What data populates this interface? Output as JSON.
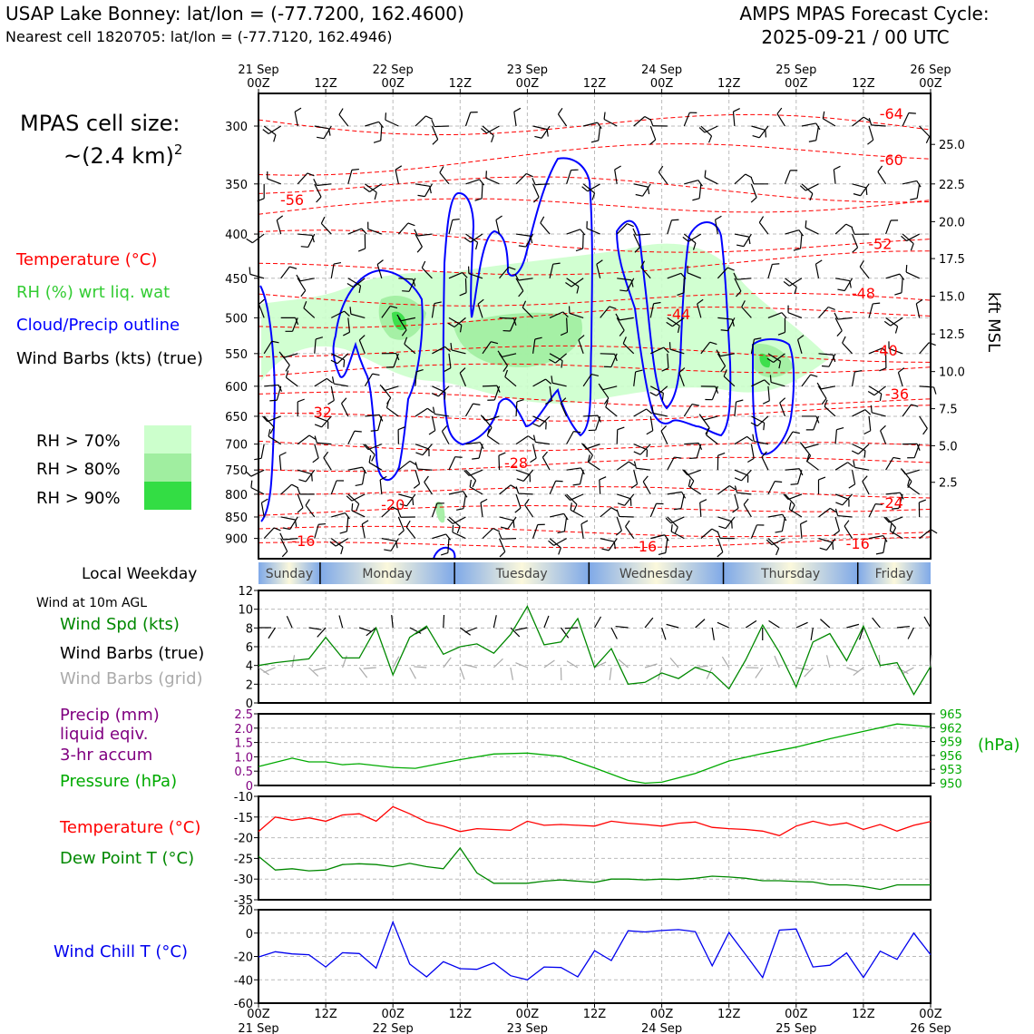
{
  "header": {
    "title_left": "USAP Lake Bonney: lat/lon = (-77.7200, 162.4600)",
    "subtitle_left": "Nearest cell 1820705: lat/lon = (-77.7120, 162.4946)",
    "title_right_1": "AMPS MPAS Forecast Cycle:",
    "title_right_2": "2025-09-21 / 00 UTC"
  },
  "cell_size": {
    "line1": "MPAS cell size:",
    "line2": "~(2.4 km)",
    "exp": "2"
  },
  "legend": {
    "temperature": {
      "label": "Temperature (°C)",
      "color": "#ff0000"
    },
    "rh": {
      "label": "RH (%) wrt liq. wat",
      "color": "#33cc33"
    },
    "cloud": {
      "label": "Cloud/Precip outline",
      "color": "#0000ff"
    },
    "barbs": {
      "label": "Wind Barbs (kts) (true)",
      "color": "#000000"
    },
    "rh70": {
      "label": "RH > 70%",
      "color": "#ccffcc"
    },
    "rh80": {
      "label": "RH > 80%",
      "color": "#a0eea0"
    },
    "rh90": {
      "label": "RH > 90%",
      "color": "#33dd44"
    }
  },
  "time_axis": {
    "ticks": [
      {
        "hour": 0,
        "top": "00Z",
        "bottom": "21 Sep"
      },
      {
        "hour": 12,
        "top": "12Z",
        "bottom": ""
      },
      {
        "hour": 24,
        "top": "00Z",
        "bottom": "22 Sep"
      },
      {
        "hour": 36,
        "top": "12Z",
        "bottom": ""
      },
      {
        "hour": 48,
        "top": "00Z",
        "bottom": "23 Sep"
      },
      {
        "hour": 60,
        "top": "12Z",
        "bottom": ""
      },
      {
        "hour": 72,
        "top": "00Z",
        "bottom": "24 Sep"
      },
      {
        "hour": 84,
        "top": "12Z",
        "bottom": ""
      },
      {
        "hour": 96,
        "top": "00Z",
        "bottom": "25 Sep"
      },
      {
        "hour": 108,
        "top": "12Z",
        "bottom": ""
      },
      {
        "hour": 120,
        "top": "00Z",
        "bottom": "26 Sep"
      }
    ],
    "top_dates": [
      "21 Sep",
      "22 Sep",
      "23 Sep",
      "24 Sep",
      "25 Sep",
      "26 Sep"
    ]
  },
  "weekday": {
    "label": "Local Weekday",
    "days": [
      {
        "name": "Sunday",
        "start": 0,
        "end": 11
      },
      {
        "name": "Monday",
        "start": 11,
        "end": 35
      },
      {
        "name": "Tuesday",
        "start": 35,
        "end": 59
      },
      {
        "name": "Wednesday",
        "start": 59,
        "end": 83
      },
      {
        "name": "Thursday",
        "start": 83,
        "end": 107
      },
      {
        "name": "Friday",
        "start": 107,
        "end": 120
      }
    ]
  },
  "chart_data": [
    {
      "type": "contour",
      "name": "cross-section",
      "ylabel_right": "kft MSL",
      "pressure_ticks": [
        300,
        350,
        400,
        450,
        500,
        550,
        600,
        650,
        700,
        750,
        800,
        850,
        900
      ],
      "ylim_hpa": [
        950,
        275
      ],
      "kft_ticks": [
        {
          "label": "25.0",
          "hpa": 315
        },
        {
          "label": "22.5",
          "hpa": 350
        },
        {
          "label": "20.0",
          "hpa": 387
        },
        {
          "label": "17.5",
          "hpa": 427
        },
        {
          "label": "15.0",
          "hpa": 472
        },
        {
          "label": "12.5",
          "hpa": 522
        },
        {
          "label": "10.0",
          "hpa": 577
        },
        {
          "label": "7.5",
          "hpa": 637
        },
        {
          "label": "5.0",
          "hpa": 703
        },
        {
          "label": "2.5",
          "hpa": 775
        }
      ],
      "temperature_labels": [
        {
          "text": "-64",
          "hour": 113,
          "hpa": 290
        },
        {
          "text": "-60",
          "hour": 113,
          "hpa": 328
        },
        {
          "text": "-56",
          "hour": 6,
          "hpa": 365
        },
        {
          "text": "-52",
          "hour": 111,
          "hpa": 410
        },
        {
          "text": "-48",
          "hour": 108,
          "hpa": 468
        },
        {
          "text": "-44",
          "hour": 75,
          "hpa": 495
        },
        {
          "text": "-40",
          "hour": 112,
          "hpa": 545
        },
        {
          "text": "-36",
          "hour": 114,
          "hpa": 612
        },
        {
          "text": "-32",
          "hour": 11,
          "hpa": 642
        },
        {
          "text": "-28",
          "hour": 46,
          "hpa": 735
        },
        {
          "text": "-24",
          "hour": 113,
          "hpa": 818
        },
        {
          "text": "-20",
          "hour": 24,
          "hpa": 822
        },
        {
          "text": "-16",
          "hour": 8,
          "hpa": 905
        },
        {
          "text": "-16",
          "hour": 69,
          "hpa": 918
        },
        {
          "text": "-16",
          "hour": 107,
          "hpa": 912
        }
      ]
    },
    {
      "type": "line",
      "name": "wind-10m",
      "panel_title": "Wind at 10m AGL",
      "labels": {
        "speed": "Wind Spd (kts)",
        "barbs_true": "Wind Barbs (true)",
        "barbs_grid": "Wind Barbs (grid)"
      },
      "colors": {
        "speed": "#008800",
        "barbs_true": "#000000",
        "barbs_grid": "#aaaaaa"
      },
      "ylim": [
        0,
        12
      ],
      "yticks": [
        0,
        2,
        4,
        6,
        8,
        10,
        12
      ],
      "x_hours": [
        0,
        3,
        6,
        9,
        12,
        15,
        18,
        21,
        24,
        27,
        30,
        33,
        36,
        39,
        42,
        45,
        48,
        51,
        54,
        57,
        60,
        63,
        66,
        69,
        72,
        75,
        78,
        81,
        84,
        87,
        90,
        93,
        96,
        99,
        102,
        105,
        108,
        111,
        114,
        117,
        120
      ],
      "speed": [
        4.0,
        4.3,
        4.5,
        4.7,
        7.0,
        4.8,
        4.8,
        8.0,
        3.0,
        7.0,
        8.2,
        5.2,
        6.0,
        6.3,
        5.3,
        7.3,
        10.3,
        6.2,
        6.5,
        9.0,
        3.8,
        5.8,
        2.0,
        2.2,
        3.2,
        2.6,
        3.8,
        3.2,
        1.5,
        4.6,
        8.3,
        5.4,
        1.7,
        6.5,
        7.4,
        4.5,
        8.2,
        4.0,
        4.3,
        0.9,
        3.9
      ]
    },
    {
      "type": "line",
      "name": "precip-pressure",
      "labels": {
        "precip": "Precip (mm)",
        "precip2": "liquid eqiv.",
        "precip3": "3-hr accum",
        "pressure": "Pressure (hPa)",
        "pressure_unit": "(hPa)"
      },
      "colors": {
        "precip": "#800080",
        "pressure": "#00aa00"
      },
      "precip_ylim": [
        0,
        2.5
      ],
      "precip_ticks": [
        "0",
        "0.5",
        "1.0",
        "1.5",
        "2.0",
        "2.5"
      ],
      "pressure_ylim": [
        949.5,
        965
      ],
      "pressure_ticks": [
        "950",
        "953",
        "956",
        "959",
        "962",
        "965"
      ],
      "x_hours": [
        0,
        6,
        9,
        12,
        15,
        18,
        24,
        28,
        36,
        42,
        48,
        54,
        60,
        66,
        69,
        72,
        78,
        84,
        90,
        96,
        102,
        108,
        114,
        117,
        120
      ],
      "pressure": [
        953.6,
        955.4,
        954.6,
        954.6,
        954.0,
        954.2,
        953.4,
        953.2,
        955.1,
        956.3,
        956.5,
        955.8,
        953.3,
        950.6,
        950.0,
        950.2,
        952.1,
        954.8,
        956.4,
        957.8,
        959.6,
        961.2,
        962.8,
        962.5,
        962.2
      ]
    },
    {
      "type": "line",
      "name": "temperature-dewpoint",
      "labels": {
        "temperature": "Temperature (°C)",
        "dewpoint": "Dew Point T (°C)"
      },
      "colors": {
        "temperature": "#ff0000",
        "dewpoint": "#008800"
      },
      "ylim": [
        -35,
        -10
      ],
      "yticks": [
        "-35",
        "-30",
        "-25",
        "-20",
        "-15",
        "-10"
      ],
      "x_hours": [
        0,
        3,
        6,
        9,
        12,
        15,
        18,
        21,
        24,
        27,
        30,
        33,
        36,
        39,
        42,
        45,
        48,
        51,
        54,
        57,
        60,
        63,
        66,
        69,
        72,
        75,
        78,
        81,
        84,
        87,
        90,
        93,
        96,
        99,
        102,
        105,
        108,
        111,
        114,
        117,
        120
      ],
      "temperature": [
        -18.5,
        -15.0,
        -15.8,
        -15.2,
        -16.0,
        -14.5,
        -14.2,
        -16.0,
        -12.5,
        -14.2,
        -16.2,
        -17.2,
        -18.5,
        -17.8,
        -18.0,
        -18.2,
        -16.0,
        -17.0,
        -16.8,
        -17.0,
        -17.2,
        -16.0,
        -16.5,
        -16.8,
        -17.2,
        -16.5,
        -16.2,
        -17.5,
        -17.8,
        -18.0,
        -18.4,
        -19.5,
        -17.2,
        -16.0,
        -17.0,
        -16.4,
        -18.0,
        -16.8,
        -18.4,
        -17.0,
        -16.1
      ],
      "dewpoint": [
        -24.5,
        -27.8,
        -27.5,
        -28.0,
        -27.8,
        -26.5,
        -26.3,
        -26.5,
        -27.0,
        -26.2,
        -27.0,
        -27.5,
        -22.5,
        -28.5,
        -31.0,
        -31.0,
        -31.0,
        -30.5,
        -30.2,
        -30.5,
        -30.8,
        -30.0,
        -30.0,
        -30.2,
        -30.0,
        -30.1,
        -29.8,
        -29.3,
        -29.5,
        -29.8,
        -30.4,
        -30.4,
        -30.6,
        -30.7,
        -31.4,
        -31.4,
        -31.8,
        -32.5,
        -31.4,
        -31.4,
        -31.4
      ]
    },
    {
      "type": "line",
      "name": "wind-chill",
      "labels": {
        "windchill": "Wind Chill T (°C)"
      },
      "colors": {
        "windchill": "#0000ee"
      },
      "ylim": [
        -60,
        20
      ],
      "yticks": [
        "-60",
        "-40",
        "-20",
        "0",
        "20"
      ],
      "x_hours": [
        0,
        3,
        6,
        9,
        12,
        15,
        18,
        21,
        24,
        27,
        30,
        33,
        36,
        39,
        42,
        45,
        48,
        51,
        54,
        57,
        60,
        63,
        66,
        69,
        72,
        75,
        78,
        81,
        84,
        87,
        90,
        93,
        96,
        99,
        102,
        105,
        108,
        111,
        114,
        117,
        120
      ],
      "windchill": [
        -20.5,
        -16.0,
        -17.8,
        -18.5,
        -29.0,
        -16.8,
        -17.5,
        -30.0,
        9.5,
        -26.5,
        -37.5,
        -24.5,
        -30.5,
        -31.0,
        -25.5,
        -36.5,
        -40.0,
        -29.0,
        -29.5,
        -37.5,
        -15.0,
        -23.5,
        2.0,
        1.0,
        2.2,
        3.0,
        1.2,
        -28.0,
        0.5,
        -18.5,
        -38.0,
        2.5,
        3.5,
        -29.0,
        -27.5,
        -17.0,
        -38.0,
        -15.5,
        -22.5,
        0.0,
        -18.5
      ]
    }
  ]
}
